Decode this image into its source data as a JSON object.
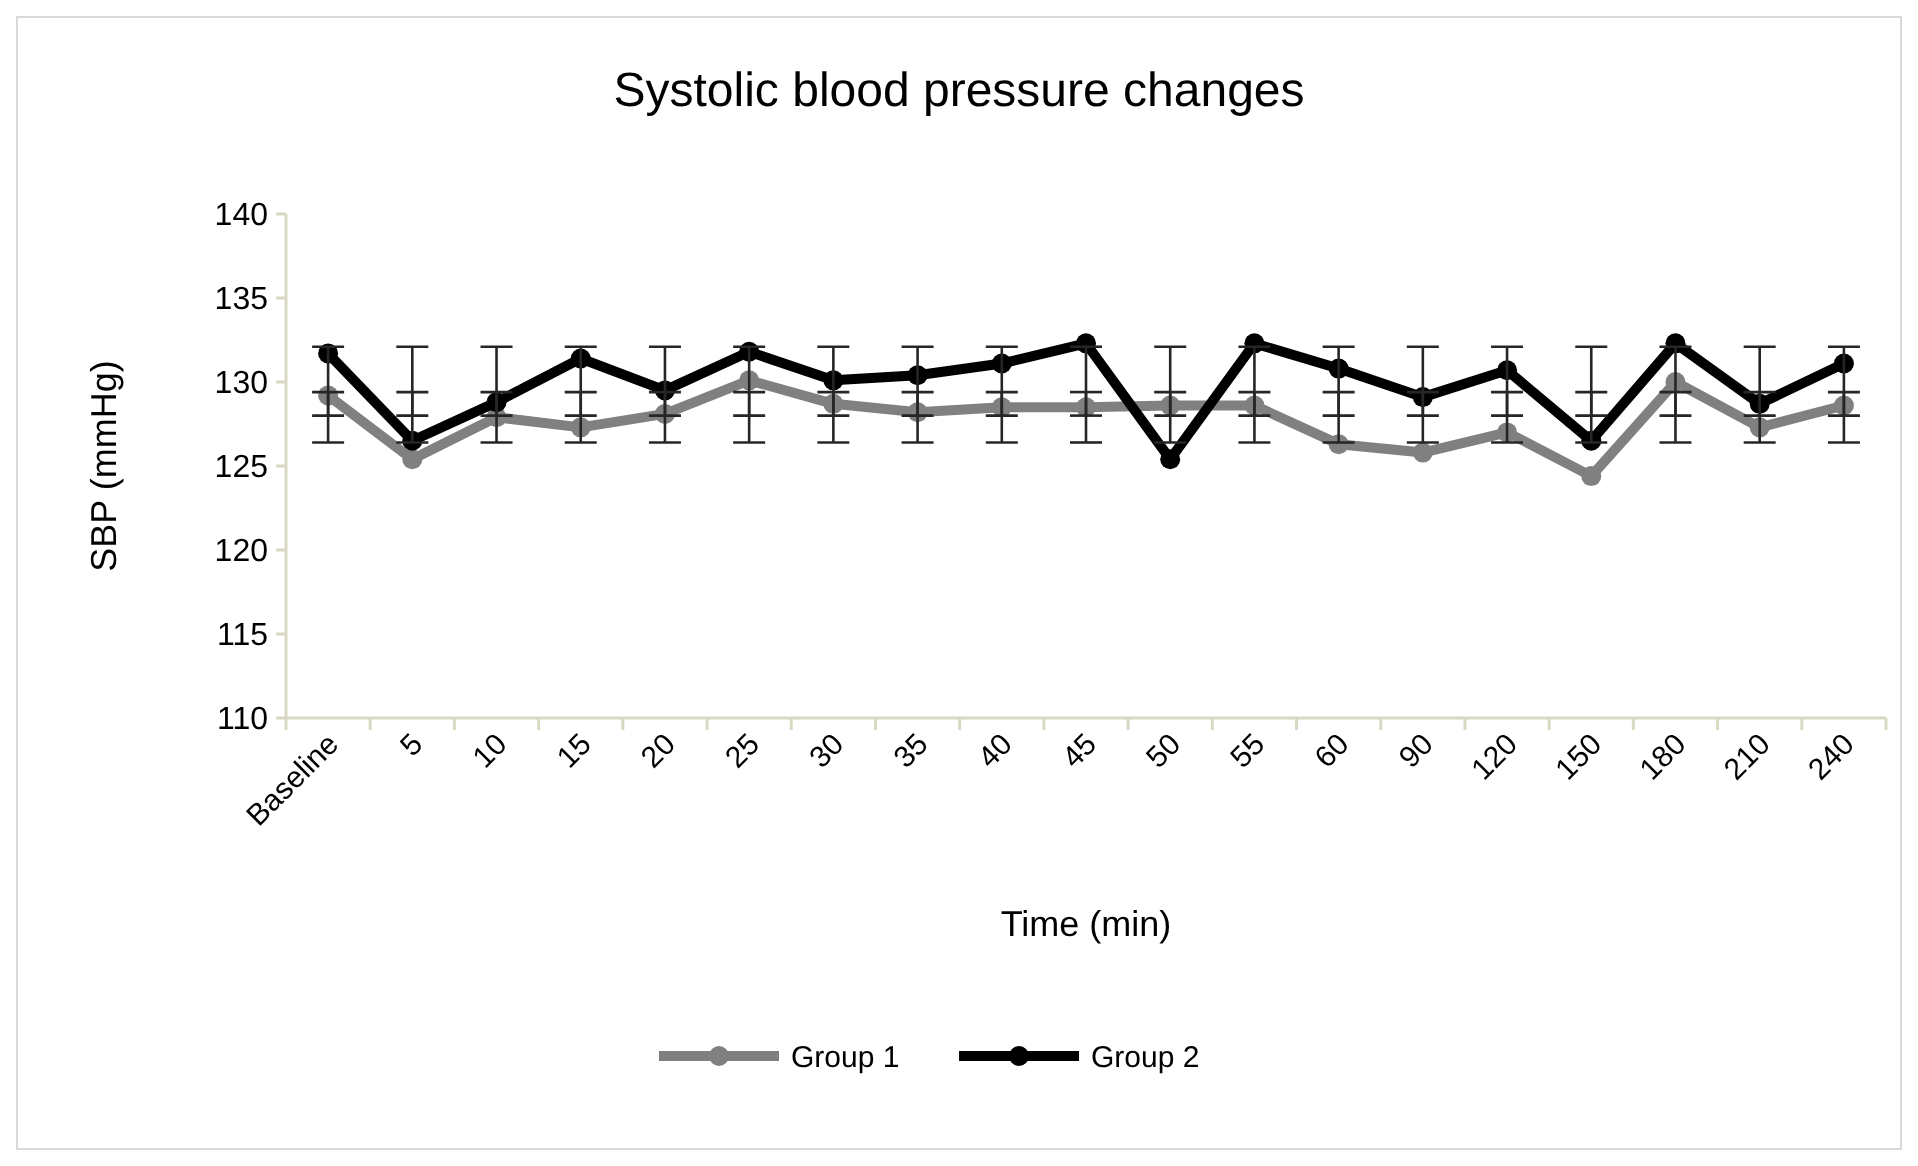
{
  "chart_data": {
    "type": "line",
    "title": "Systolic blood pressure changes",
    "xlabel": "Time (min)",
    "ylabel": "SBP (mmHg)",
    "categories": [
      "Baseline",
      "5",
      "10",
      "15",
      "20",
      "25",
      "30",
      "35",
      "40",
      "45",
      "50",
      "55",
      "60",
      "90",
      "120",
      "150",
      "180",
      "210",
      "240"
    ],
    "ylim": [
      110,
      140
    ],
    "yticks": [
      110,
      115,
      120,
      125,
      130,
      135,
      140
    ],
    "grid": false,
    "legend": "bottom",
    "marker": "circle",
    "line_style": "solid",
    "series": [
      {
        "name": "Group 1",
        "color": "#808080",
        "values": [
          129.2,
          125.4,
          127.9,
          127.3,
          128.1,
          130.1,
          128.7,
          128.2,
          128.5,
          128.5,
          128.6,
          128.6,
          126.3,
          125.8,
          127.0,
          124.4,
          130.0,
          127.3,
          128.6
        ],
        "errors": [
          [
            126.4,
            129.4
          ],
          [
            126.4,
            129.4
          ],
          [
            126.4,
            129.4
          ],
          [
            126.4,
            129.4
          ],
          [
            126.4,
            129.4
          ],
          [
            126.4,
            129.4
          ],
          [
            126.4,
            129.4
          ],
          [
            126.4,
            129.4
          ],
          [
            126.4,
            129.4
          ],
          [
            126.4,
            129.4
          ],
          [
            126.4,
            129.4
          ],
          [
            126.4,
            129.4
          ],
          [
            126.4,
            129.4
          ],
          [
            126.4,
            129.4
          ],
          [
            126.4,
            129.4
          ],
          [
            126.4,
            129.4
          ],
          [
            126.4,
            129.4
          ],
          [
            126.4,
            129.4
          ],
          [
            126.4,
            129.4
          ]
        ]
      },
      {
        "name": "Group 2",
        "color": "#000000",
        "values": [
          131.7,
          126.5,
          128.8,
          131.4,
          129.5,
          131.8,
          130.1,
          130.4,
          131.1,
          132.3,
          125.4,
          132.3,
          130.8,
          129.1,
          130.7,
          126.5,
          132.3,
          128.7,
          131.1
        ],
        "errors": [
          [
            128.0,
            132.1
          ],
          [
            128.0,
            132.1
          ],
          [
            128.0,
            132.1
          ],
          [
            128.0,
            132.1
          ],
          [
            128.0,
            132.1
          ],
          [
            128.0,
            132.1
          ],
          [
            128.0,
            132.1
          ],
          [
            128.0,
            132.1
          ],
          [
            128.0,
            132.1
          ],
          [
            128.0,
            132.1
          ],
          [
            128.0,
            132.1
          ],
          [
            128.0,
            132.1
          ],
          [
            128.0,
            132.1
          ],
          [
            128.0,
            132.1
          ],
          [
            128.0,
            132.1
          ],
          [
            128.0,
            132.1
          ],
          [
            128.0,
            132.1
          ],
          [
            128.0,
            132.1
          ],
          [
            128.0,
            132.1
          ]
        ]
      }
    ]
  }
}
